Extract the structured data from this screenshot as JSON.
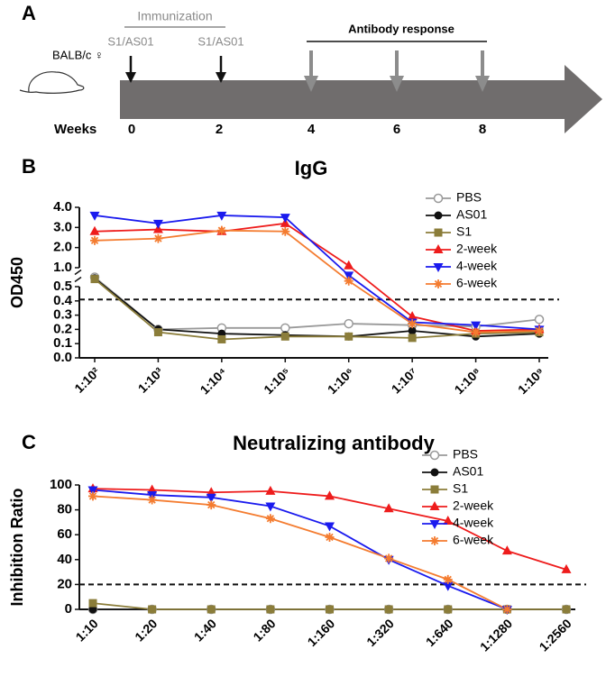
{
  "schematic": {
    "label": "A",
    "immunization": "Immunization",
    "doses": [
      "S1/AS01",
      "S1/AS01"
    ],
    "response": "Antibody response",
    "host": "BALB/c ♀",
    "axis_label": "Weeks",
    "weeks": [
      0,
      2,
      4,
      6,
      8
    ]
  },
  "chart_data": [
    {
      "type": "line",
      "panel": "B",
      "title": "IgG",
      "y_label": "OD450",
      "categories": [
        "1:10²",
        "1:10³",
        "1:10⁴",
        "1:10⁵",
        "1:10⁶",
        "1:10⁷",
        "1:10⁸",
        "1:10⁹"
      ],
      "ylim": [
        0,
        4
      ],
      "ybreak": [
        0.5,
        1
      ],
      "yticks": [
        {
          "value": 0,
          "label": "0.0"
        },
        0.1,
        0.2,
        0.3,
        0.4,
        0.5,
        {
          "value": 1,
          "label": "1.0"
        },
        {
          "value": 2,
          "label": "2.0"
        },
        {
          "value": 3,
          "label": "3.0"
        },
        {
          "value": 4,
          "label": "4.0"
        }
      ],
      "reference_line": 0.41,
      "series": [
        {
          "name": "PBS",
          "color": "#999999",
          "marker": "open-circle",
          "values": [
            0.75,
            0.2,
            0.21,
            0.21,
            0.24,
            0.23,
            0.22,
            0.27
          ]
        },
        {
          "name": "AS01",
          "color": "#111111",
          "marker": "circle",
          "values": [
            0.72,
            0.2,
            0.17,
            0.16,
            0.15,
            0.19,
            0.15,
            0.17
          ]
        },
        {
          "name": "S1",
          "color": "#8b7d3a",
          "marker": "square",
          "values": [
            0.7,
            0.18,
            0.13,
            0.15,
            0.15,
            0.14,
            0.17,
            0.18
          ]
        },
        {
          "name": "2-week",
          "color": "#ee1c1c",
          "marker": "triangle-up",
          "values": [
            2.8,
            2.9,
            2.8,
            3.2,
            1.1,
            0.29,
            0.19,
            0.2
          ]
        },
        {
          "name": "4-week",
          "color": "#1a1aee",
          "marker": "triangle-down",
          "values": [
            3.6,
            3.2,
            3.6,
            3.5,
            0.8,
            0.25,
            0.23,
            0.2
          ]
        },
        {
          "name": "6-week",
          "color": "#f47c30",
          "marker": "star",
          "values": [
            2.35,
            2.45,
            2.85,
            2.8,
            0.65,
            0.24,
            0.18,
            0.19
          ]
        }
      ]
    },
    {
      "type": "line",
      "panel": "C",
      "title": "Neutralizing antibody",
      "y_label": "Inhibition Ratio",
      "categories": [
        "1:10",
        "1:20",
        "1:40",
        "1:80",
        "1:160",
        "1:320",
        "1:640",
        "1:1280",
        "1:2560"
      ],
      "ylim": [
        0,
        100
      ],
      "yticks": [
        0,
        20,
        40,
        60,
        80,
        100
      ],
      "reference_line": 20,
      "series": [
        {
          "name": "PBS",
          "color": "#999999",
          "marker": "open-circle",
          "values": [
            0,
            0,
            0,
            0,
            0,
            0,
            0,
            0,
            0
          ]
        },
        {
          "name": "AS01",
          "color": "#111111",
          "marker": "circle",
          "values": [
            0,
            0,
            0,
            0,
            0,
            0,
            0,
            0,
            0
          ]
        },
        {
          "name": "S1",
          "color": "#8b7d3a",
          "marker": "square",
          "values": [
            5,
            0,
            0,
            0,
            0,
            0,
            0,
            0,
            0
          ]
        },
        {
          "name": "2-week",
          "color": "#ee1c1c",
          "marker": "triangle-up",
          "values": [
            97,
            96,
            94,
            95,
            91,
            81,
            71,
            47,
            32
          ]
        },
        {
          "name": "4-week",
          "color": "#1a1aee",
          "marker": "triangle-down",
          "values": [
            96,
            92,
            90,
            83,
            67,
            40,
            19,
            0,
            null
          ]
        },
        {
          "name": "6-week",
          "color": "#f47c30",
          "marker": "star",
          "values": [
            91,
            88,
            84,
            73,
            58,
            41,
            24,
            0,
            null
          ]
        }
      ]
    }
  ]
}
